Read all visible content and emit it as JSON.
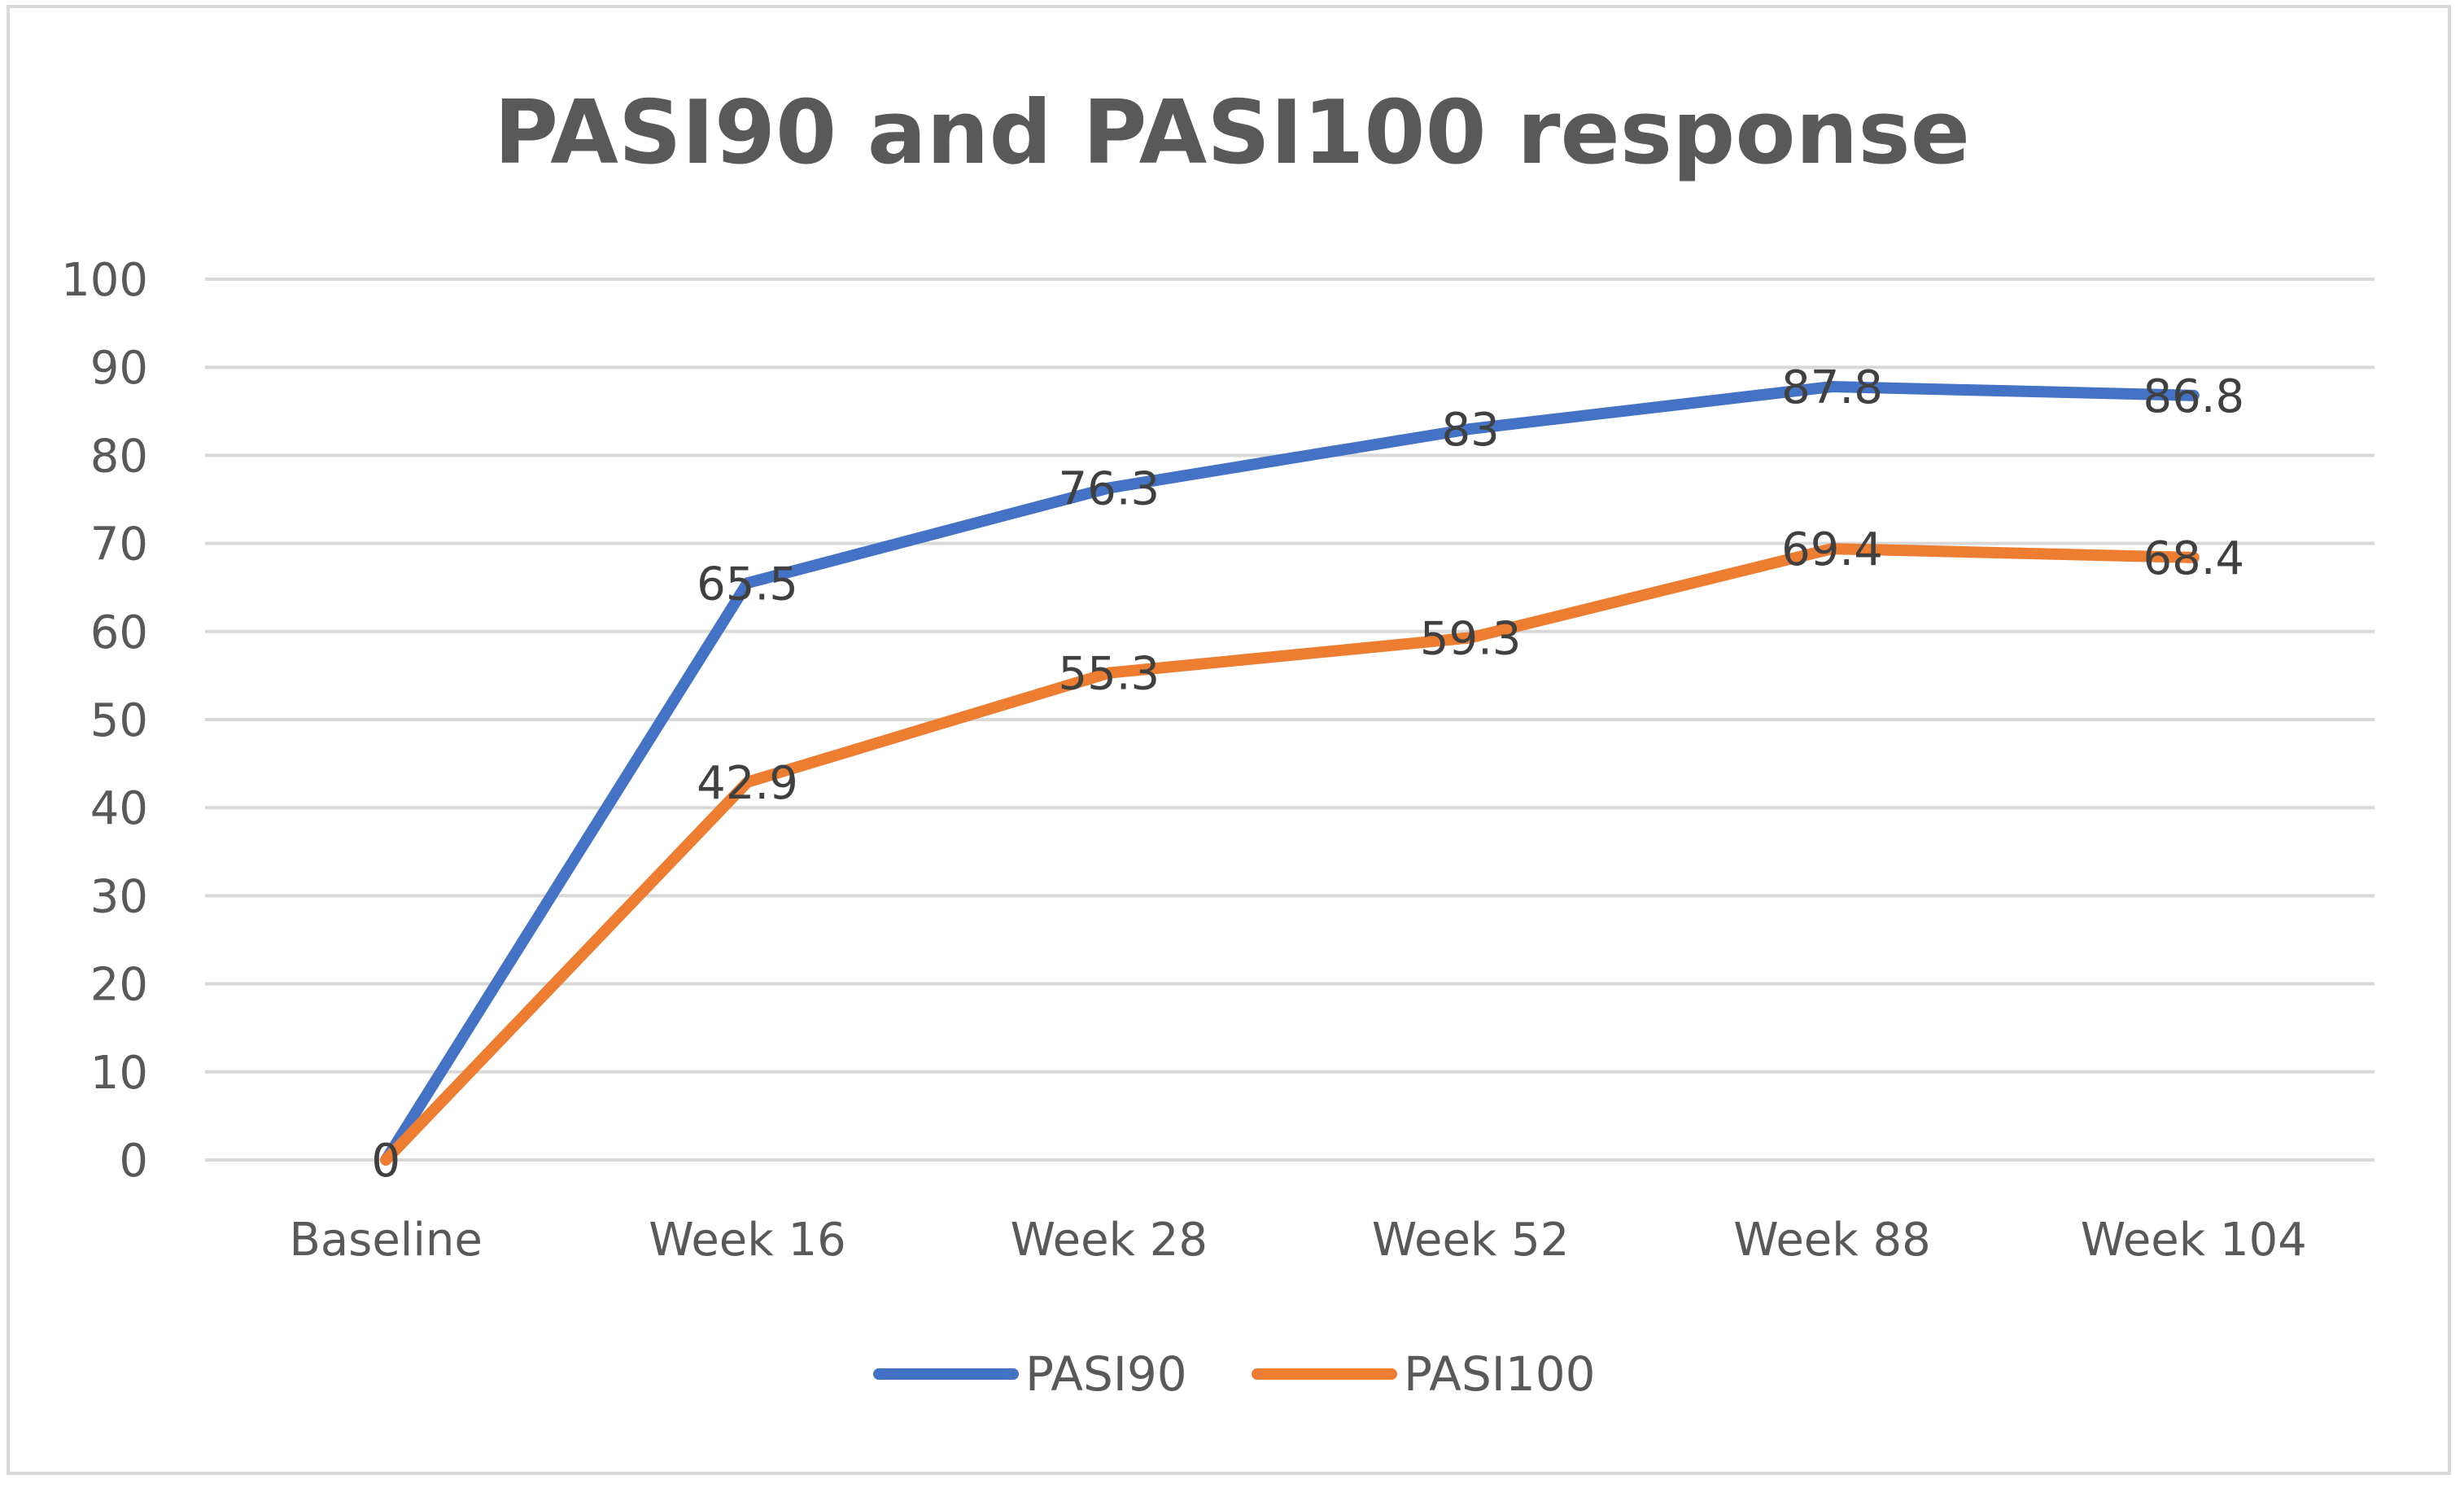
{
  "chart_data": {
    "type": "line",
    "title": "PASI90 and PASI100 response",
    "xlabel": "",
    "ylabel": "",
    "categories": [
      "Baseline",
      "Week 16",
      "Week 28",
      "Week 52",
      "Week 88",
      "Week 104"
    ],
    "ylim": [
      0,
      100
    ],
    "yticks": [
      0,
      10,
      20,
      30,
      40,
      50,
      60,
      70,
      80,
      90,
      100
    ],
    "ytick_labels": [
      "0",
      "10",
      "20",
      "30",
      "40",
      "50",
      "60",
      "70",
      "80",
      "90",
      "100"
    ],
    "grid": true,
    "legend_position": "bottom",
    "series": [
      {
        "name": "PASI90",
        "color": "#4472C4",
        "values": [
          0,
          65.5,
          76.3,
          83,
          87.8,
          86.8
        ],
        "labels": [
          "0",
          "65.5",
          "76.3",
          "83",
          "87.8",
          "86.8"
        ]
      },
      {
        "name": "PASI100",
        "color": "#ED7D31",
        "values": [
          0,
          42.9,
          55.3,
          59.3,
          69.4,
          68.4
        ],
        "labels": [
          "0",
          "42.9",
          "55.3",
          "59.3",
          "69.4",
          "68.4"
        ]
      }
    ]
  }
}
